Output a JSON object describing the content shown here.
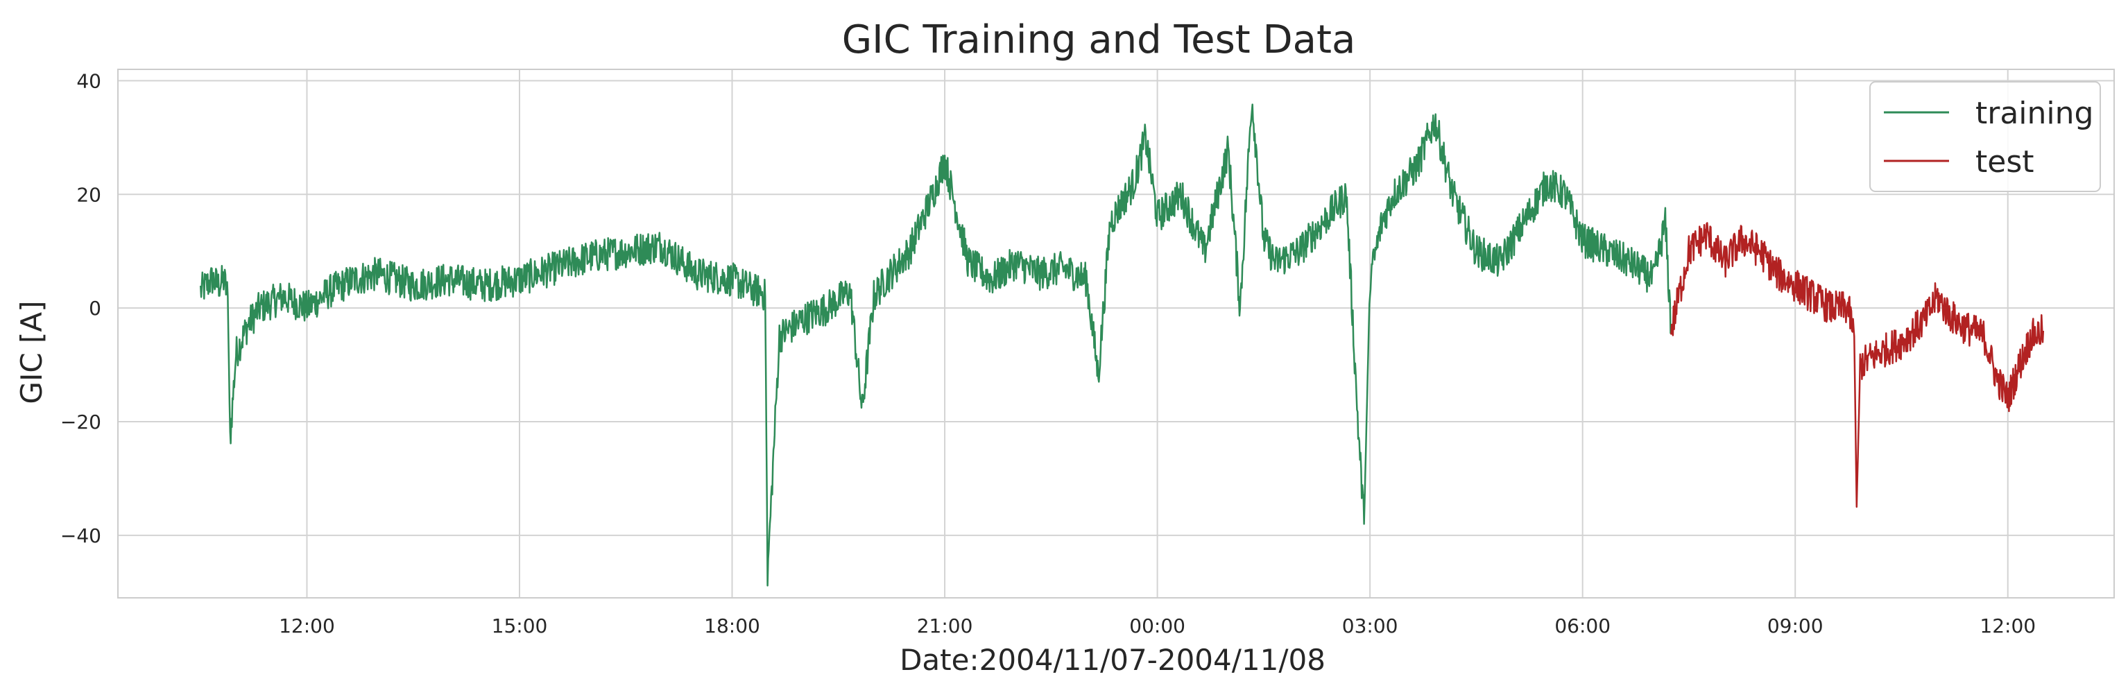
{
  "chart_data": {
    "type": "line",
    "title": "GIC Training and Test Data",
    "xlabel": "Date:2004/11/07-2004/11/08",
    "ylabel": "GIC [A]",
    "x_unit": "time",
    "x_ticks": [
      "12:00",
      "15:00",
      "18:00",
      "21:00",
      "00:00",
      "03:00",
      "06:00",
      "09:00",
      "12:00"
    ],
    "xlim": [
      "2004-11-07 09:20",
      "2004-11-08 13:30"
    ],
    "y_ticks": [
      40,
      20,
      0,
      -20,
      -40
    ],
    "ylim": [
      -51,
      42
    ],
    "grid": true,
    "legend_position": "top-right",
    "colors": {
      "training": "#2e8b57",
      "test": "#b22222",
      "grid": "#d3d3d3",
      "frame": "#cccccc"
    },
    "series": [
      {
        "name": "training",
        "color": "#2e8b57",
        "x": [
          "2004-11-07 10:30",
          "2004-11-07 10:40",
          "2004-11-07 10:45",
          "2004-11-07 10:50",
          "2004-11-07 10:53",
          "2004-11-07 10:55",
          "2004-11-07 11:00",
          "2004-11-07 11:10",
          "2004-11-07 11:20",
          "2004-11-07 11:40",
          "2004-11-07 12:00",
          "2004-11-07 12:20",
          "2004-11-07 12:40",
          "2004-11-07 13:00",
          "2004-11-07 13:30",
          "2004-11-07 14:00",
          "2004-11-07 14:30",
          "2004-11-07 15:00",
          "2004-11-07 15:30",
          "2004-11-07 16:00",
          "2004-11-07 16:30",
          "2004-11-07 17:00",
          "2004-11-07 17:30",
          "2004-11-07 18:00",
          "2004-11-07 18:20",
          "2004-11-07 18:25",
          "2004-11-07 18:28",
          "2004-11-07 18:30",
          "2004-11-07 18:40",
          "2004-11-07 19:00",
          "2004-11-07 19:20",
          "2004-11-07 19:40",
          "2004-11-07 19:50",
          "2004-11-07 20:00",
          "2004-11-07 20:10",
          "2004-11-07 20:30",
          "2004-11-07 20:50",
          "2004-11-07 21:00",
          "2004-11-07 21:20",
          "2004-11-07 21:40",
          "2004-11-07 22:00",
          "2004-11-07 22:20",
          "2004-11-07 22:40",
          "2004-11-07 23:00",
          "2004-11-07 23:10",
          "2004-11-07 23:20",
          "2004-11-07 23:40",
          "2004-11-07 23:50",
          "2004-11-08 00:00",
          "2004-11-08 00:20",
          "2004-11-08 00:40",
          "2004-11-08 01:00",
          "2004-11-08 01:10",
          "2004-11-08 01:20",
          "2004-11-08 01:30",
          "2004-11-08 01:40",
          "2004-11-08 02:00",
          "2004-11-08 02:20",
          "2004-11-08 02:40",
          "2004-11-08 02:50",
          "2004-11-08 02:55",
          "2004-11-08 03:00",
          "2004-11-08 03:10",
          "2004-11-08 03:20",
          "2004-11-08 03:40",
          "2004-11-08 03:55",
          "2004-11-08 04:10",
          "2004-11-08 04:30",
          "2004-11-08 04:50",
          "2004-11-08 05:10",
          "2004-11-08 05:30",
          "2004-11-08 05:45",
          "2004-11-08 06:00",
          "2004-11-08 06:20",
          "2004-11-08 06:40",
          "2004-11-08 07:00",
          "2004-11-08 07:10",
          "2004-11-08 07:15"
        ],
        "values": [
          3,
          5,
          4,
          5,
          2,
          -23,
          -8,
          -3,
          0,
          2,
          0,
          3,
          5,
          6,
          4,
          5,
          4,
          5,
          7,
          9,
          10,
          11,
          6,
          5,
          3,
          3,
          2,
          -47,
          -5,
          -2,
          0,
          3,
          -18,
          2,
          5,
          10,
          20,
          26,
          8,
          5,
          8,
          6,
          7,
          5,
          -12,
          15,
          22,
          30,
          16,
          20,
          10,
          28,
          0,
          37,
          12,
          8,
          10,
          15,
          20,
          -21,
          -38,
          5,
          15,
          20,
          25,
          33,
          20,
          10,
          8,
          15,
          22,
          20,
          12,
          10,
          8,
          5,
          15,
          -4
        ]
      },
      {
        "name": "test",
        "color": "#b22222",
        "x": [
          "2004-11-08 07:15",
          "2004-11-08 07:30",
          "2004-11-08 07:45",
          "2004-11-08 08:00",
          "2004-11-08 08:15",
          "2004-11-08 08:30",
          "2004-11-08 08:45",
          "2004-11-08 09:00",
          "2004-11-08 09:15",
          "2004-11-08 09:30",
          "2004-11-08 09:45",
          "2004-11-08 09:50",
          "2004-11-08 09:52",
          "2004-11-08 09:55",
          "2004-11-08 10:10",
          "2004-11-08 10:30",
          "2004-11-08 10:50",
          "2004-11-08 11:00",
          "2004-11-08 11:10",
          "2004-11-08 11:20",
          "2004-11-08 11:40",
          "2004-11-08 11:50",
          "2004-11-08 12:00",
          "2004-11-08 12:10",
          "2004-11-08 12:20",
          "2004-11-08 12:30"
        ],
        "values": [
          -4,
          10,
          13,
          8,
          12,
          10,
          6,
          4,
          2,
          0,
          0,
          -5,
          -35,
          -10,
          -8,
          -6,
          -2,
          2,
          -1,
          -3,
          -5,
          -12,
          -16,
          -10,
          -5,
          -4
        ]
      }
    ]
  }
}
